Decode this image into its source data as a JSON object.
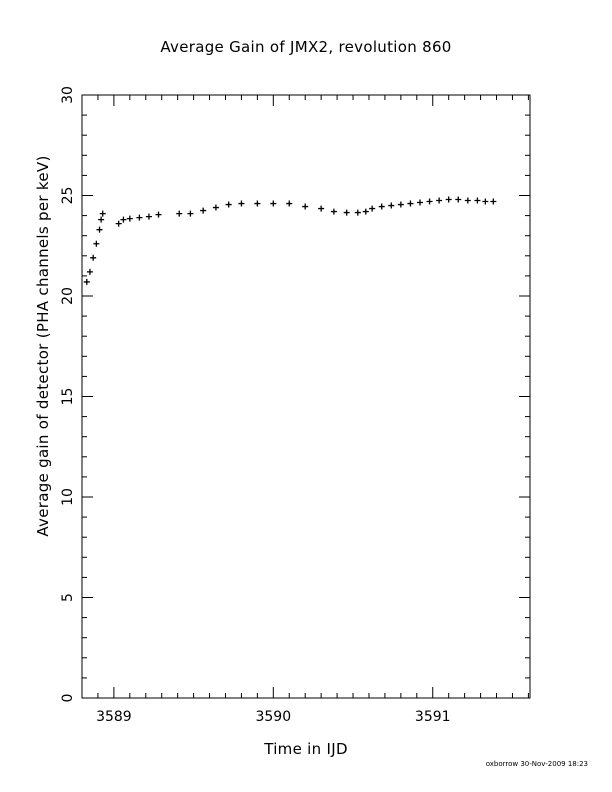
{
  "chart_data": {
    "type": "scatter",
    "title": "Average Gain of JMX2, revolution 860",
    "xlabel": "Time in IJD",
    "ylabel": "Average gain of detector (PHA channels per keV)",
    "xlim": [
      3588.8,
      3591.61
    ],
    "ylim": [
      0,
      30
    ],
    "xticks": [
      3589,
      3590,
      3591
    ],
    "yticks": [
      0,
      5,
      10,
      15,
      20,
      25,
      30
    ],
    "marker": "plus",
    "color": "#000000",
    "segments": [
      {
        "x": [
          3588.83,
          3588.85,
          3588.87,
          3588.89,
          3588.91,
          3588.92,
          3588.93
        ],
        "y": [
          20.7,
          21.2,
          21.9,
          22.6,
          23.3,
          23.8,
          24.1
        ]
      },
      {
        "x": [
          3589.03,
          3589.06,
          3589.1,
          3589.16,
          3589.22,
          3589.28
        ],
        "y": [
          23.6,
          23.8,
          23.85,
          23.9,
          23.95,
          24.05
        ]
      },
      {
        "x": [
          3589.41,
          3589.48,
          3589.56,
          3589.64,
          3589.72,
          3589.8,
          3589.9,
          3590.0,
          3590.1,
          3590.2,
          3590.3,
          3590.38,
          3590.46,
          3590.53,
          3590.58
        ],
        "y": [
          24.1,
          24.1,
          24.25,
          24.4,
          24.55,
          24.6,
          24.6,
          24.6,
          24.6,
          24.45,
          24.35,
          24.2,
          24.15,
          24.15,
          24.2
        ]
      },
      {
        "x": [
          3590.62,
          3590.68,
          3590.74,
          3590.8,
          3590.86,
          3590.92,
          3590.98,
          3591.04,
          3591.1,
          3591.16,
          3591.22,
          3591.28
        ],
        "y": [
          24.35,
          24.45,
          24.5,
          24.55,
          24.6,
          24.65,
          24.7,
          24.75,
          24.8,
          24.8,
          24.75,
          24.75
        ]
      },
      {
        "x": [
          3591.33,
          3591.38
        ],
        "y": [
          24.7,
          24.7
        ]
      }
    ]
  },
  "footer": "oxborrow 30-Nov-2009 18:23"
}
